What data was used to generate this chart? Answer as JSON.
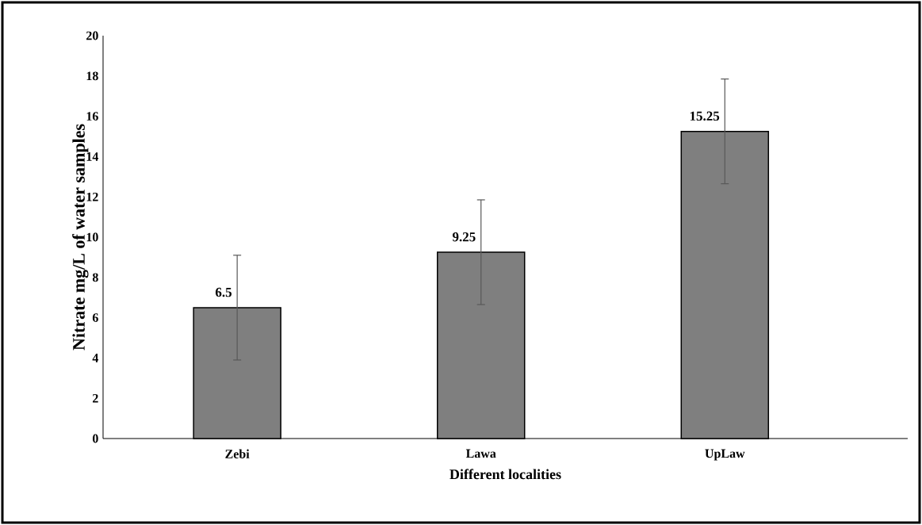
{
  "chart_data": {
    "type": "bar",
    "xlabel": "Different localities",
    "ylabel": "Nitrate mg/L of water samples",
    "categories": [
      "Zebi",
      "Lawa",
      "UpLaw"
    ],
    "values": [
      6.5,
      9.25,
      15.25
    ],
    "errors": [
      2.6,
      2.6,
      2.6
    ],
    "color": "#7f7f7f",
    "ylim": [
      0,
      20
    ],
    "yticks": [
      0,
      2,
      4,
      6,
      8,
      10,
      12,
      14,
      16,
      18,
      20
    ],
    "data_labels": true
  }
}
